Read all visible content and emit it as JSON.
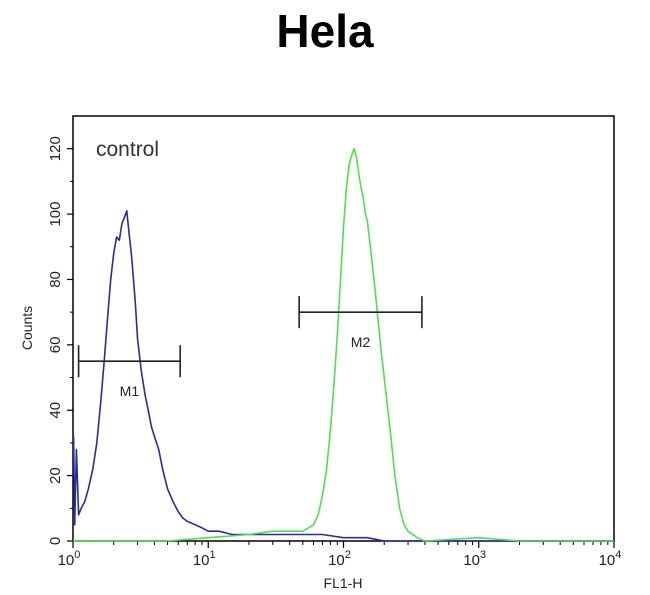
{
  "chart_data": {
    "type": "line",
    "title": "Hela",
    "xlabel": "FL1-H",
    "ylabel": "Counts",
    "x_scale": "log",
    "xlim": [
      1,
      10000
    ],
    "ylim": [
      0,
      130
    ],
    "grid": false,
    "x_ticks": [
      {
        "value": 1,
        "base": "10",
        "exp": "0"
      },
      {
        "value": 10,
        "base": "10",
        "exp": "1"
      },
      {
        "value": 100,
        "base": "10",
        "exp": "2"
      },
      {
        "value": 1000,
        "base": "10",
        "exp": "3"
      },
      {
        "value": 10000,
        "base": "10",
        "exp": "4"
      }
    ],
    "y_ticks": [
      {
        "value": 0,
        "label": "0"
      },
      {
        "value": 20,
        "label": "20"
      },
      {
        "value": 40,
        "label": "40"
      },
      {
        "value": 60,
        "label": "60"
      },
      {
        "value": 80,
        "label": "80"
      },
      {
        "value": 100,
        "label": "100"
      },
      {
        "value": 120,
        "label": "120"
      }
    ],
    "annotation": "control",
    "gates": [
      {
        "label": "M1",
        "x_start": 1.1,
        "x_end": 6.2,
        "y": 55
      },
      {
        "label": "M2",
        "x_start": 47,
        "x_end": 380,
        "y": 70
      }
    ],
    "series": [
      {
        "color": "#2a2aa8",
        "x": [
          1.01,
          1.03,
          1.06,
          1.1,
          1.15,
          1.22,
          1.3,
          1.4,
          1.5,
          1.6,
          1.7,
          1.8,
          1.9,
          2.0,
          2.1,
          2.2,
          2.3,
          2.4,
          2.5,
          2.6,
          2.7,
          2.8,
          2.9,
          3.0,
          3.2,
          3.4,
          3.6,
          3.8,
          4.0,
          4.3,
          4.6,
          5.0,
          5.5,
          6.0,
          6.5,
          7.0,
          8.0,
          9.0,
          10,
          12,
          15,
          20,
          30,
          50,
          70,
          100,
          150,
          200,
          300,
          500,
          1000,
          2000,
          5000,
          10000
        ],
        "y": [
          32,
          5,
          28,
          8,
          10,
          12,
          16,
          22,
          30,
          42,
          55,
          68,
          80,
          88,
          93,
          92,
          97,
          99,
          101,
          94,
          88,
          80,
          72,
          62,
          52,
          45,
          40,
          35,
          32,
          28,
          22,
          16,
          12,
          9,
          7,
          6,
          5,
          4,
          3,
          3,
          2,
          2,
          2,
          2,
          2,
          1,
          1,
          0,
          0,
          0,
          0,
          0,
          0,
          0
        ]
      },
      {
        "color": "#4fe04f",
        "x": [
          1.0,
          2.0,
          5.0,
          10,
          20,
          30,
          40,
          50,
          55,
          60,
          65,
          70,
          75,
          80,
          85,
          90,
          95,
          100,
          105,
          110,
          115,
          120,
          125,
          130,
          135,
          140,
          145,
          150,
          160,
          170,
          180,
          190,
          200,
          210,
          220,
          240,
          260,
          280,
          300,
          350,
          400,
          1000,
          2000,
          10000
        ],
        "y": [
          0,
          0,
          0,
          1,
          2,
          3,
          3,
          3,
          4,
          5,
          8,
          14,
          22,
          34,
          48,
          63,
          80,
          96,
          108,
          115,
          118,
          120,
          117,
          112,
          108,
          105,
          100,
          98,
          88,
          78,
          68,
          58,
          50,
          42,
          35,
          20,
          10,
          5,
          3,
          1,
          0,
          1,
          0,
          0
        ]
      }
    ]
  }
}
